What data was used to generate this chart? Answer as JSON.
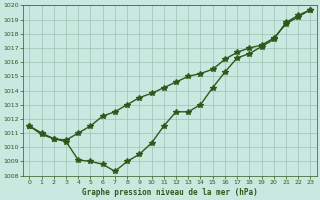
{
  "x": [
    0,
    1,
    2,
    3,
    4,
    5,
    6,
    7,
    8,
    9,
    10,
    11,
    12,
    13,
    14,
    15,
    16,
    17,
    18,
    19,
    20,
    21,
    22,
    23
  ],
  "line1_upper": [
    1011.5,
    1010.9,
    1010.6,
    1010.5,
    1011.0,
    1011.5,
    1012.2,
    1012.5,
    1013.0,
    1013.5,
    1013.8,
    1014.2,
    1014.6,
    1015.0,
    1015.2,
    1015.5,
    1016.2,
    1016.7,
    1017.0,
    1017.2,
    1017.7,
    1018.7,
    1019.2,
    1019.7
  ],
  "line2_lower": [
    1011.5,
    1011.0,
    1010.6,
    1010.4,
    1009.1,
    1009.0,
    1008.8,
    1008.3,
    1009.0,
    1009.5,
    1010.3,
    1011.5,
    1012.5,
    1012.5,
    1013.0,
    1014.2,
    1015.3,
    1016.3,
    1016.6,
    1017.1,
    1017.6,
    1018.8,
    1019.3,
    1019.7
  ],
  "line_color": "#2d5a1b",
  "bg_color": "#c8e8e0",
  "grid_color": "#99c4b4",
  "xlabel": "Graphe pression niveau de la mer (hPa)",
  "ylim": [
    1008,
    1020
  ],
  "xlim": [
    -0.5,
    23.5
  ],
  "yticks": [
    1008,
    1009,
    1010,
    1011,
    1012,
    1013,
    1014,
    1015,
    1016,
    1017,
    1018,
    1019,
    1020
  ],
  "xticks": [
    0,
    1,
    2,
    3,
    4,
    5,
    6,
    7,
    8,
    9,
    10,
    11,
    12,
    13,
    14,
    15,
    16,
    17,
    18,
    19,
    20,
    21,
    22,
    23
  ],
  "marker_size": 4,
  "line_width": 1.0
}
